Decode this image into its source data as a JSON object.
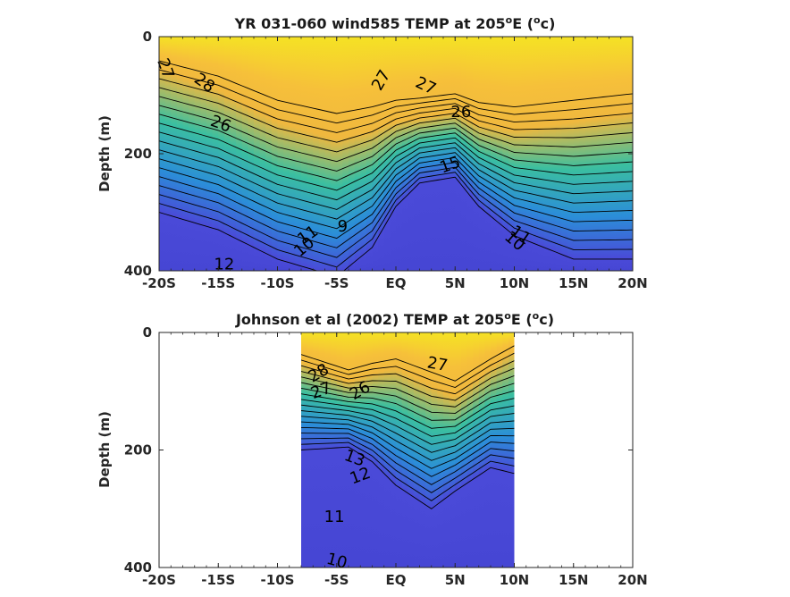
{
  "chart_data": [
    {
      "type": "heatmap",
      "title": "YR 031-060 wind585 TEMP at 205",
      "title_unit_prefix": "E (",
      "title_unit_close": "c)",
      "title_sup": "o",
      "xlabel": "",
      "ylabel": "Depth (m)",
      "x_ticks": [
        "-20S",
        "-15S",
        "-10S",
        "-5S",
        "EQ",
        "5N",
        "10N",
        "15N",
        "20N"
      ],
      "y_ticks": [
        "0",
        "200",
        "400"
      ],
      "xlim": [
        -20,
        20
      ],
      "ylim": [
        0,
        400
      ],
      "data_xrange": [
        -20,
        20
      ],
      "thermocline_profile": [
        {
          "lat": -20,
          "top": 55,
          "bottom": 300
        },
        {
          "lat": -15,
          "top": 90,
          "bottom": 330
        },
        {
          "lat": -10,
          "top": 145,
          "bottom": 380
        },
        {
          "lat": -5,
          "top": 175,
          "bottom": 410
        },
        {
          "lat": -2,
          "top": 160,
          "bottom": 360
        },
        {
          "lat": 0,
          "top": 145,
          "bottom": 290
        },
        {
          "lat": 2,
          "top": 140,
          "bottom": 250
        },
        {
          "lat": 5,
          "top": 130,
          "bottom": 240
        },
        {
          "lat": 7,
          "top": 150,
          "bottom": 290
        },
        {
          "lat": 10,
          "top": 160,
          "bottom": 340
        },
        {
          "lat": 15,
          "top": 145,
          "bottom": 380
        },
        {
          "lat": 20,
          "top": 130,
          "bottom": 380
        }
      ],
      "contour_labels": [
        {
          "text": "27",
          "lat": -19.5,
          "depth": 55,
          "angle": 70
        },
        {
          "text": "28",
          "lat": -16.2,
          "depth": 80,
          "angle": 35
        },
        {
          "text": "27",
          "lat": -1.2,
          "depth": 75,
          "angle": -60
        },
        {
          "text": "27",
          "lat": 2.5,
          "depth": 85,
          "angle": 25
        },
        {
          "text": "26",
          "lat": -14.8,
          "depth": 150,
          "angle": 20
        },
        {
          "text": "26",
          "lat": 5.5,
          "depth": 130,
          "angle": 0
        },
        {
          "text": "15",
          "lat": 4.6,
          "depth": 220,
          "angle": -20
        },
        {
          "text": "12",
          "lat": -14.5,
          "depth": 390,
          "angle": 0
        },
        {
          "text": "11",
          "lat": -7.4,
          "depth": 340,
          "angle": -35
        },
        {
          "text": "10",
          "lat": -7.7,
          "depth": 360,
          "angle": -40
        },
        {
          "text": "9",
          "lat": -4.5,
          "depth": 325,
          "angle": 0
        },
        {
          "text": "11",
          "lat": 10.5,
          "depth": 340,
          "angle": 35
        },
        {
          "text": "10",
          "lat": 10.0,
          "depth": 350,
          "angle": 40
        }
      ]
    },
    {
      "type": "heatmap",
      "title": "Johnson et al (2002) TEMP at 205",
      "title_unit_prefix": "E (",
      "title_unit_close": "c)",
      "title_sup": "o",
      "xlabel": "",
      "ylabel": "Depth (m)",
      "x_ticks": [
        "-20S",
        "-15S",
        "-10S",
        "-5S",
        "EQ",
        "5N",
        "10N",
        "15N",
        "20N"
      ],
      "y_ticks": [
        "0",
        "200",
        "400"
      ],
      "xlim": [
        -20,
        20
      ],
      "ylim": [
        0,
        400
      ],
      "data_xrange": [
        -8,
        10
      ],
      "thermocline_profile": [
        {
          "lat": -8,
          "top": 50,
          "bottom": 200
        },
        {
          "lat": -4,
          "top": 85,
          "bottom": 195
        },
        {
          "lat": -2,
          "top": 70,
          "bottom": 220
        },
        {
          "lat": 0,
          "top": 60,
          "bottom": 260
        },
        {
          "lat": 3,
          "top": 90,
          "bottom": 300
        },
        {
          "lat": 5,
          "top": 110,
          "bottom": 270
        },
        {
          "lat": 8,
          "top": 60,
          "bottom": 230
        },
        {
          "lat": 10,
          "top": 30,
          "bottom": 240
        }
      ],
      "contour_labels": [
        {
          "text": "28",
          "lat": -6.5,
          "depth": 70,
          "angle": -30
        },
        {
          "text": "27",
          "lat": -6.3,
          "depth": 100,
          "angle": -20
        },
        {
          "text": "26",
          "lat": -3.0,
          "depth": 100,
          "angle": -30
        },
        {
          "text": "27",
          "lat": 3.5,
          "depth": 55,
          "angle": 10
        },
        {
          "text": "13",
          "lat": -3.5,
          "depth": 215,
          "angle": 20
        },
        {
          "text": "12",
          "lat": -3.0,
          "depth": 245,
          "angle": -20
        },
        {
          "text": "11",
          "lat": -5.2,
          "depth": 315,
          "angle": 0
        },
        {
          "text": "10",
          "lat": -5.0,
          "depth": 390,
          "angle": 15
        }
      ]
    }
  ],
  "colors": {
    "warm": "#f5e224",
    "warm2": "#f6c03a",
    "mid": "#3bbfa0",
    "cool": "#2b8ed8",
    "deep": "#4a4ad8",
    "frame": "#262626"
  }
}
